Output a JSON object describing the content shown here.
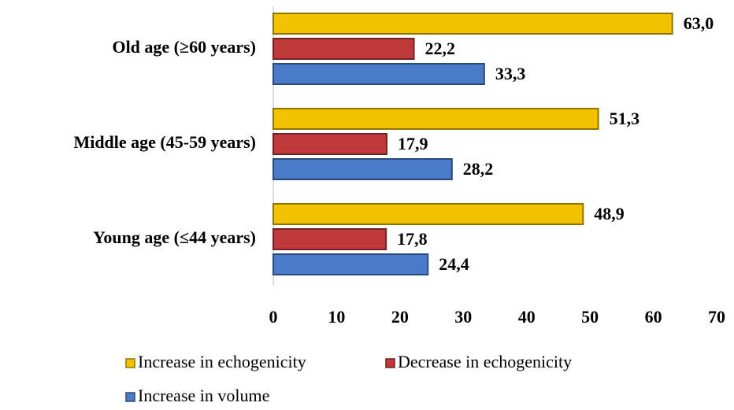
{
  "chart_data": {
    "type": "bar",
    "orientation": "horizontal",
    "categories": [
      "Old age (≥60 years)",
      "Middle age (45-59 years)",
      "Young age (≤44 years)"
    ],
    "series": [
      {
        "name": "Increase in echogenicity",
        "color": "#f2c200",
        "values": [
          63.0,
          51.3,
          48.9
        ],
        "value_labels": [
          "63,0",
          "51,3",
          "48,9"
        ]
      },
      {
        "name": "Decrease in echogenicity",
        "color": "#c0393b",
        "values": [
          22.2,
          17.9,
          17.8
        ],
        "value_labels": [
          "22,2",
          "17,9",
          "17,8"
        ]
      },
      {
        "name": "Increase in volume",
        "color": "#4a7bc8",
        "values": [
          33.3,
          28.2,
          24.4
        ],
        "value_labels": [
          "33,3",
          "28,2",
          "24,4"
        ]
      }
    ],
    "xlim": [
      0,
      70
    ],
    "xticks": [
      0,
      10,
      20,
      30,
      40,
      50,
      60,
      70
    ],
    "grid": false,
    "legend": "bottom"
  }
}
